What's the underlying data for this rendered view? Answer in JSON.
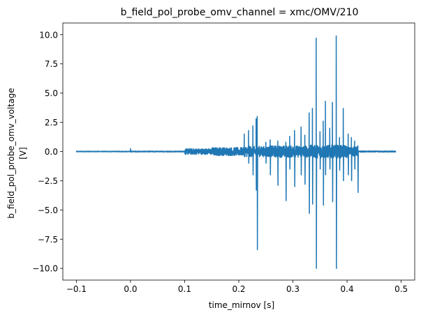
{
  "chart_data": {
    "type": "line",
    "title": "b_field_pol_probe_omv_channel = xmc/OMV/210",
    "xlabel": "time_mirnov [s]",
    "ylabel_line1": "b_field_pol_probe_omv_voltage",
    "ylabel_line2": "[V]",
    "xlim": [
      -0.125,
      0.525
    ],
    "ylim": [
      -11.0,
      11.0
    ],
    "x_ticks": [
      -0.1,
      0.0,
      0.1,
      0.2,
      0.3,
      0.4,
      0.5
    ],
    "x_tick_labels": [
      "−0.1",
      "0.0",
      "0.1",
      "0.2",
      "0.3",
      "0.4",
      "0.5"
    ],
    "y_ticks": [
      -10.0,
      -7.5,
      -5.0,
      -2.5,
      0.0,
      2.5,
      5.0,
      7.5,
      10.0
    ],
    "y_tick_labels": [
      "−10.0",
      "−7.5",
      "−5.0",
      "−2.5",
      "0.0",
      "2.5",
      "5.0",
      "7.5",
      "10.0"
    ],
    "grid": false,
    "series": [
      {
        "name": "xmc/OMV/210",
        "color": "#1f77b4",
        "x_start": -0.1,
        "x_end": 0.49,
        "baseline_noise": [
          {
            "t0": -0.1,
            "t1": 0.0,
            "amp": 0.03
          },
          {
            "t0": 0.0,
            "t1": 0.1,
            "amp": 0.04
          },
          {
            "t0": 0.1,
            "t1": 0.15,
            "amp": 0.25
          },
          {
            "t0": 0.15,
            "t1": 0.21,
            "amp": 0.35
          },
          {
            "t0": 0.21,
            "t1": 0.26,
            "amp": 0.45
          },
          {
            "t0": 0.26,
            "t1": 0.33,
            "amp": 0.5
          },
          {
            "t0": 0.33,
            "t1": 0.4,
            "amp": 0.55
          },
          {
            "t0": 0.4,
            "t1": 0.42,
            "amp": 0.4
          },
          {
            "t0": 0.42,
            "t1": 0.49,
            "amp": 0.05
          }
        ],
        "spikes": [
          {
            "t": 0.0,
            "min": -0.05,
            "max": 0.25
          },
          {
            "t": 0.21,
            "min": -0.4,
            "max": 1.5
          },
          {
            "t": 0.218,
            "min": -1.0,
            "max": 1.8
          },
          {
            "t": 0.226,
            "min": -2.0,
            "max": 2.2
          },
          {
            "t": 0.232,
            "min": -3.3,
            "max": 2.8
          },
          {
            "t": 0.234,
            "min": -8.4,
            "max": 3.0
          },
          {
            "t": 0.25,
            "min": -1.0,
            "max": 0.8
          },
          {
            "t": 0.258,
            "min": -2.0,
            "max": 1.0
          },
          {
            "t": 0.272,
            "min": -2.9,
            "max": 0.9
          },
          {
            "t": 0.287,
            "min": -4.2,
            "max": 0.8
          },
          {
            "t": 0.294,
            "min": -1.5,
            "max": 1.3
          },
          {
            "t": 0.303,
            "min": -3.0,
            "max": 1.8
          },
          {
            "t": 0.315,
            "min": -2.0,
            "max": 2.1
          },
          {
            "t": 0.322,
            "min": -2.8,
            "max": 1.4
          },
          {
            "t": 0.33,
            "min": -5.3,
            "max": 3.3
          },
          {
            "t": 0.336,
            "min": -4.5,
            "max": 3.7
          },
          {
            "t": 0.343,
            "min": -10.0,
            "max": 9.7
          },
          {
            "t": 0.35,
            "min": -1.5,
            "max": 1.7
          },
          {
            "t": 0.356,
            "min": -4.6,
            "max": 2.6
          },
          {
            "t": 0.36,
            "min": -2.0,
            "max": 4.3
          },
          {
            "t": 0.368,
            "min": -1.5,
            "max": 2.0
          },
          {
            "t": 0.373,
            "min": -4.3,
            "max": 4.2
          },
          {
            "t": 0.38,
            "min": -10.0,
            "max": 9.9
          },
          {
            "t": 0.386,
            "min": -1.6,
            "max": 1.2
          },
          {
            "t": 0.393,
            "min": -2.5,
            "max": 3.7
          },
          {
            "t": 0.402,
            "min": -2.0,
            "max": 1.5
          },
          {
            "t": 0.408,
            "min": -2.5,
            "max": 1.2
          },
          {
            "t": 0.414,
            "min": -1.5,
            "max": 0.9
          },
          {
            "t": 0.42,
            "min": -3.5,
            "max": 0.5
          }
        ]
      }
    ]
  }
}
